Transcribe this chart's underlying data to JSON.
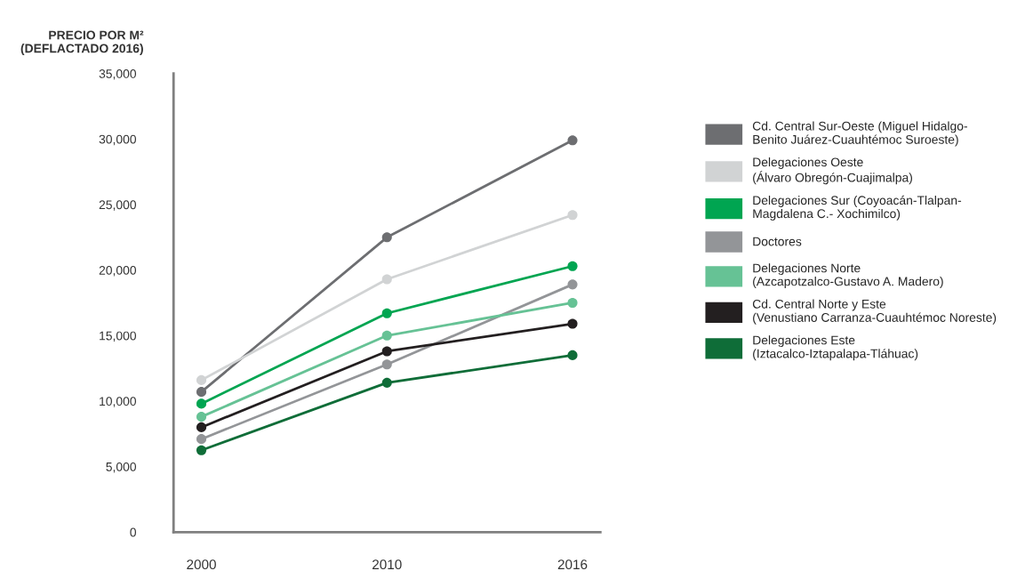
{
  "chart_data": {
    "type": "line",
    "ylabel": "PRECIO POR M²\n(DEFLACTADO 2016)",
    "categories": [
      "2000",
      "2010",
      "2016"
    ],
    "series": [
      {
        "name": "Cd. Central Sur-Oeste (Miguel Hidalgo-\nBenito Juárez-Cuauhtémoc Suroeste)",
        "color": "#6d6e71",
        "values": [
          10700,
          22500,
          29900
        ]
      },
      {
        "name": "Delegaciones Oeste\n(Álvaro Obregón-Cuajimalpa)",
        "color": "#d1d3d4",
        "values": [
          11600,
          19300,
          24200
        ]
      },
      {
        "name": "Delegaciones Sur (Coyoacán-Tlalpan-\nMagdalena C.- Xochimilco)",
        "color": "#00a551",
        "values": [
          9800,
          16700,
          20300
        ]
      },
      {
        "name": "Doctores",
        "color": "#939598",
        "values": [
          7100,
          12800,
          18900
        ]
      },
      {
        "name": "Delegaciones Norte\n(Azcapotzalco-Gustavo A. Madero)",
        "color": "#66c295",
        "values": [
          8800,
          15000,
          17500
        ]
      },
      {
        "name": "Cd. Central Norte y Este\n(Venustiano Carranza-Cuauhtémoc Noreste)",
        "color": "#231f20",
        "values": [
          8000,
          13800,
          15900
        ]
      },
      {
        "name": "Delegaciones Este\n(Iztacalco-Iztapalapa-Tláhuac)",
        "color": "#0f6d38",
        "values": [
          6250,
          11400,
          13500
        ]
      }
    ],
    "ylim": [
      0,
      35000
    ],
    "yticks": [
      0,
      {
        "value": 5000,
        "label": "5,000"
      },
      {
        "value": 10000,
        "label": "10,000"
      },
      {
        "value": 15000,
        "label": "15,000"
      },
      {
        "value": 20000,
        "label": "20,000"
      },
      {
        "value": 25000,
        "label": "25,000"
      },
      {
        "value": 30000,
        "label": "30,000"
      },
      {
        "value": 35000,
        "label": "35,000"
      }
    ],
    "marker": "circle",
    "legend": "right",
    "grid": false
  }
}
